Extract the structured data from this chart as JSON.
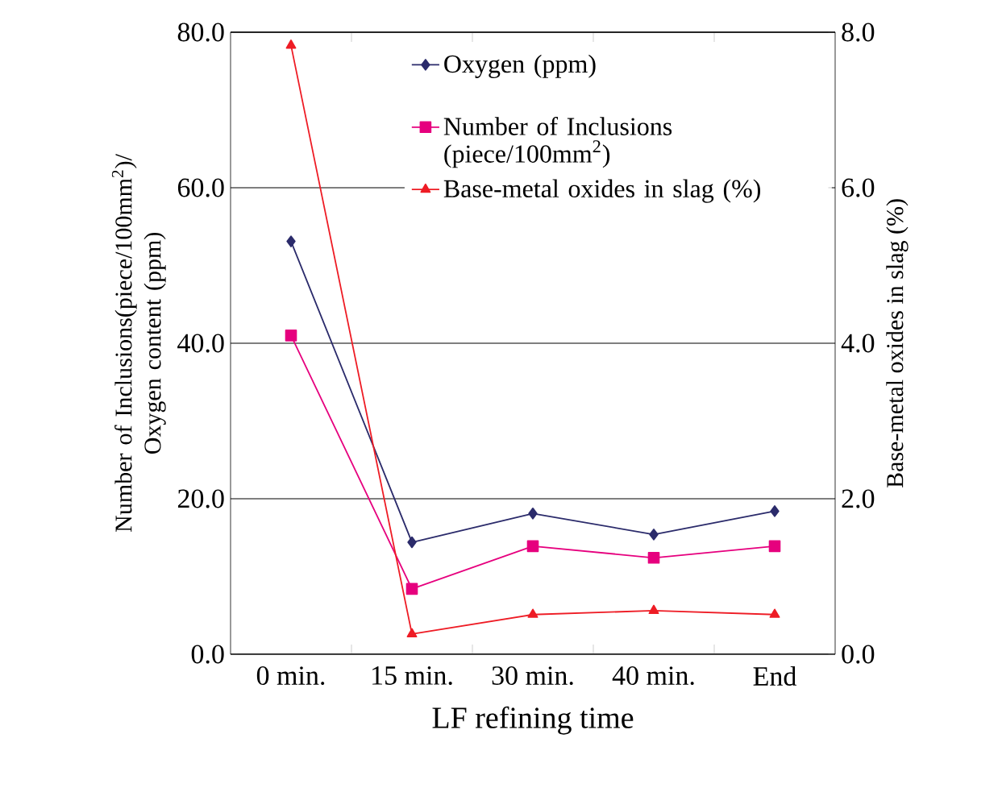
{
  "chart_data": {
    "type": "line",
    "xlabel": "LF refining time",
    "ylabel": "Number of Inclusions(piece/100mm$^{2}$)/ Oxygen content (ppm)",
    "y2label": "Base-metal oxides in slag (%)",
    "categories": [
      "0 min.",
      "15 min.",
      "30 min.",
      "40 min.",
      "End"
    ],
    "series": [
      {
        "name": "Oxygen (ppm)",
        "color": "#2b2b6b",
        "marker": "diamond",
        "values": [
          53.1,
          14.4,
          18.1,
          15.4,
          18.4
        ]
      },
      {
        "name": "Number of Inclusions (piece/100mm$^{2}$)",
        "color": "#e6007e",
        "marker": "square",
        "values": [
          41.0,
          8.4,
          13.9,
          12.4,
          13.9
        ]
      },
      {
        "name": "Base-metal oxides in slag (%)",
        "color": "#ee1c25",
        "marker": "triangle",
        "axis": "y2",
        "values": [
          7.83,
          0.26,
          0.51,
          0.56,
          0.51
        ]
      }
    ],
    "ylim": [
      0,
      80
    ],
    "yticks": [
      {
        "value": 0,
        "label": "0.0"
      },
      {
        "value": 20,
        "label": "20.0"
      },
      {
        "value": 40,
        "label": "40.0"
      },
      {
        "value": 60,
        "label": "60.0"
      },
      {
        "value": 80,
        "label": "80.0"
      }
    ],
    "y2lim": [
      0,
      8
    ],
    "y2ticks": [
      {
        "value": 0,
        "label": "0.0"
      },
      {
        "value": 2,
        "label": "2.0"
      },
      {
        "value": 4,
        "label": "4.0"
      },
      {
        "value": 6,
        "label": "6.0"
      },
      {
        "value": 8,
        "label": "8.0"
      }
    ],
    "grid": "y",
    "legend": "top right",
    "line_style": "solid"
  }
}
